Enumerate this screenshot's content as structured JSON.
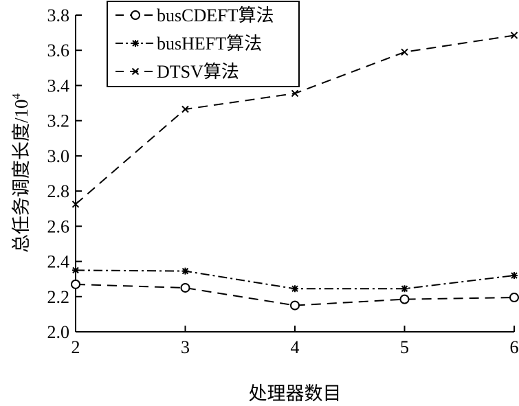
{
  "chart_data": {
    "type": "line",
    "title": "",
    "xlabel": "处理器数目",
    "ylabel": "总任务调度长度/10",
    "ylabel_exponent": "4",
    "x": [
      2,
      3,
      4,
      5,
      6
    ],
    "xlim": [
      2,
      6
    ],
    "ylim": [
      2.0,
      3.8
    ],
    "x_ticks": [
      "2",
      "3",
      "4",
      "5",
      "6"
    ],
    "y_ticks": [
      "2.0",
      "2.2",
      "2.4",
      "2.6",
      "2.8",
      "3.0",
      "3.2",
      "3.4",
      "3.6",
      "3.8"
    ],
    "grid": false,
    "legend_position": "top-left",
    "series": [
      {
        "name": "busCDEFT算法",
        "values": [
          2.27,
          2.25,
          2.15,
          2.185,
          2.195
        ],
        "marker": "circle",
        "dash": "dashed",
        "color": "#000000"
      },
      {
        "name": "busHEFT算法",
        "values": [
          2.35,
          2.345,
          2.245,
          2.245,
          2.32
        ],
        "marker": "asterisk",
        "dash": "dash-dot",
        "color": "#000000"
      },
      {
        "name": "DTSV算法",
        "values": [
          2.725,
          3.265,
          3.355,
          3.59,
          3.685
        ],
        "marker": "x",
        "dash": "dashed",
        "color": "#000000"
      }
    ]
  }
}
